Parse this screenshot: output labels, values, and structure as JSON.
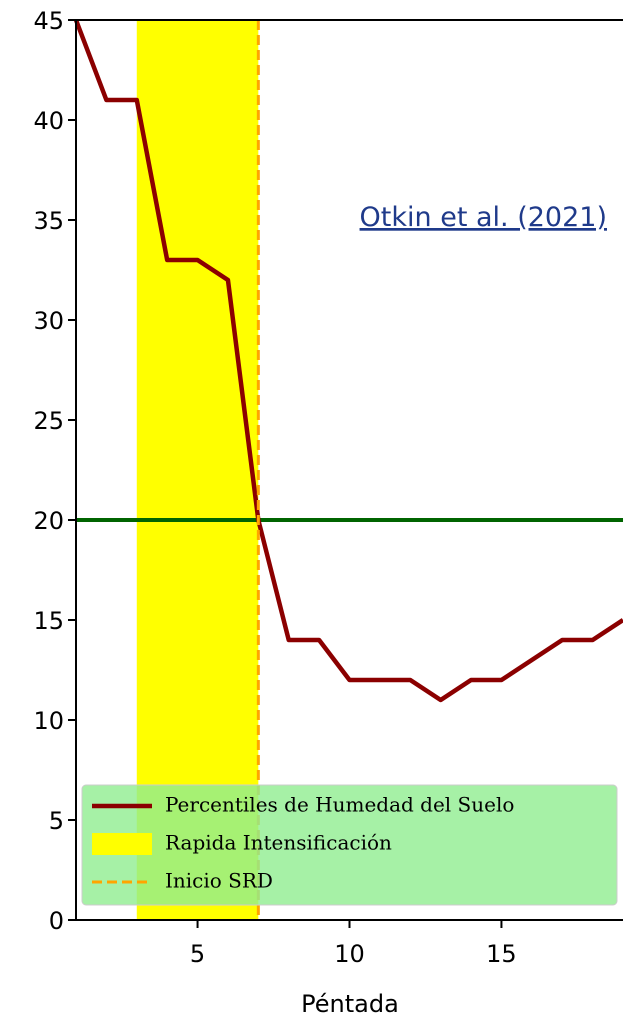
{
  "chart_data": {
    "type": "line",
    "xlabel": "Péntada",
    "x": [
      1,
      2,
      3,
      4,
      5,
      6,
      7,
      8,
      9,
      10,
      11,
      12,
      13,
      14,
      15,
      16,
      17,
      18,
      19
    ],
    "series": [
      {
        "name": "Percentiles de Humedad del Suelo",
        "color": "#8b0000",
        "values": [
          45,
          41,
          41,
          33,
          33,
          32,
          20,
          14,
          14,
          12,
          12,
          12,
          11,
          12,
          12,
          13,
          14,
          14,
          15
        ]
      }
    ],
    "span": {
      "name": "Rapida Intensificación",
      "start": 3,
      "end": 7,
      "color": "#ffff00"
    },
    "vline": {
      "name": "Inicio SRD",
      "x": 7,
      "color": "#ffa500"
    },
    "hline": {
      "value": 20,
      "color": "#006400"
    },
    "annotation": "Otkin et al. (2021)",
    "xlim": [
      1,
      19
    ],
    "ylim": [
      0,
      45
    ],
    "xticks": [
      5,
      10,
      15
    ],
    "yticks": [
      0,
      5,
      10,
      15,
      20,
      25,
      30,
      35,
      40,
      45
    ],
    "legend": "lower left",
    "legend_color": "#90ee90"
  }
}
